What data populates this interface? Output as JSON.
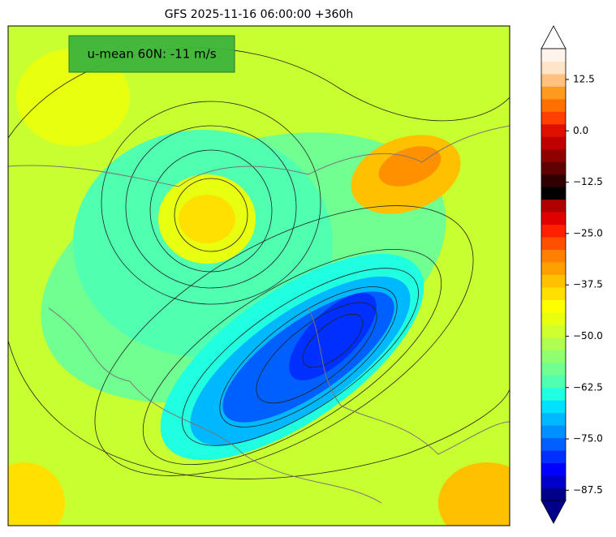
{
  "chart_data": {
    "type": "contour-map",
    "title": "GFS 2025-11-16 06:00:00 +360h",
    "annotation": "u-mean 60N: -11 m/s",
    "colorbar": {
      "lim": [
        -90,
        20
      ],
      "ticks": [
        12.5,
        {
          "value": 0,
          "label": "0.0"
        },
        {
          "value": -12.5,
          "label": "−12.5"
        },
        {
          "value": -25,
          "label": "−25.0"
        },
        {
          "value": -37.5,
          "label": "−37.5"
        },
        {
          "value": -50,
          "label": "−50.0"
        },
        {
          "value": -62.5,
          "label": "−62.5"
        },
        {
          "value": -75,
          "label": "−75.0"
        },
        {
          "value": -87.5,
          "label": "−87.5"
        }
      ],
      "colors": [
        "#00008b",
        "#0000c8",
        "#0000ff",
        "#0030ff",
        "#0060ff",
        "#0090ff",
        "#00b8ff",
        "#00e0ff",
        "#20ffe0",
        "#50ffb0",
        "#70ff90",
        "#90ff70",
        "#b0ff50",
        "#d0ff30",
        "#e8ff10",
        "#ffff00",
        "#ffe000",
        "#ffc000",
        "#ffa000",
        "#ff8000",
        "#ff5000",
        "#ff2000",
        "#e00000",
        "#b00000",
        "#000000",
        "#300000",
        "#600000",
        "#900000",
        "#c00000",
        "#e01000",
        "#ff4000",
        "#ff7000",
        "#ff9a20",
        "#ffc080",
        "#ffe4c8",
        "#fff4ec"
      ]
    }
  }
}
